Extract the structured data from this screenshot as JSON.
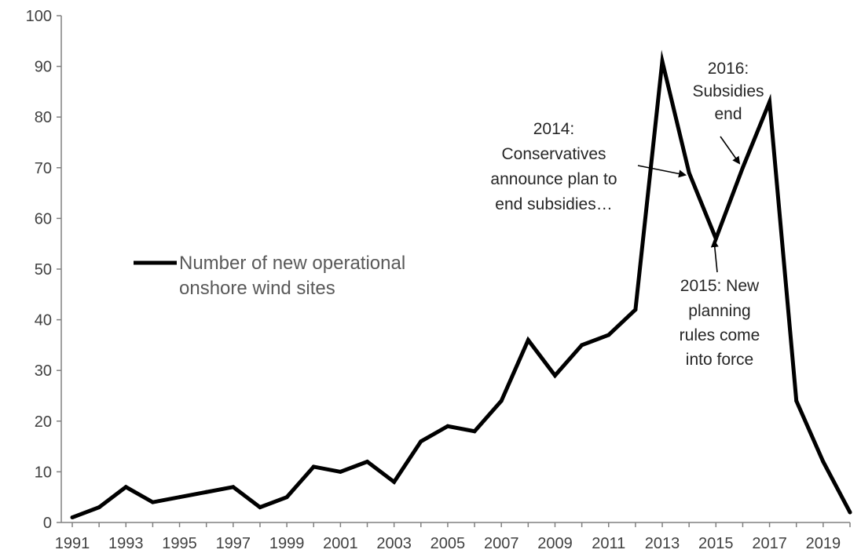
{
  "chart_data": {
    "type": "line",
    "title": "",
    "xlabel": "",
    "ylabel": "",
    "ylim": [
      0,
      100
    ],
    "yticks": [
      0,
      10,
      20,
      30,
      40,
      50,
      60,
      70,
      80,
      90,
      100
    ],
    "xticks": [
      1991,
      1993,
      1995,
      1997,
      1999,
      2001,
      2003,
      2005,
      2007,
      2009,
      2011,
      2013,
      2015,
      2017,
      2019
    ],
    "xlim": [
      1991,
      2020
    ],
    "grid": false,
    "legend_position": "middle-left",
    "series": [
      {
        "name": "Number of new operational onshore wind sites",
        "color": "#000000",
        "x": [
          1991,
          1992,
          1993,
          1994,
          1995,
          1996,
          1997,
          1998,
          1999,
          2000,
          2001,
          2002,
          2003,
          2004,
          2005,
          2006,
          2007,
          2008,
          2009,
          2010,
          2011,
          2012,
          2013,
          2014,
          2015,
          2016,
          2017,
          2018,
          2019,
          2020
        ],
        "values": [
          1,
          3,
          7,
          4,
          5,
          6,
          7,
          3,
          5,
          11,
          10,
          12,
          8,
          16,
          19,
          18,
          24,
          36,
          29,
          35,
          37,
          42,
          91,
          69,
          56,
          70,
          83,
          24,
          12,
          2
        ]
      }
    ],
    "legend": {
      "lines": [
        "Number of new operational",
        "onshore wind sites"
      ]
    },
    "annotations": [
      {
        "id": "2014",
        "lines": [
          "2014:",
          "Conservatives",
          "announce plan to",
          "end subsidies…"
        ],
        "target_x": 2014,
        "target_y": 69
      },
      {
        "id": "2015",
        "lines": [
          "2015: New",
          "planning",
          "rules come",
          "into force"
        ],
        "target_x": 2015,
        "target_y": 56
      },
      {
        "id": "2016",
        "lines": [
          "2016:",
          "Subsidies",
          "end"
        ],
        "target_x": 2016,
        "target_y": 70
      }
    ]
  }
}
